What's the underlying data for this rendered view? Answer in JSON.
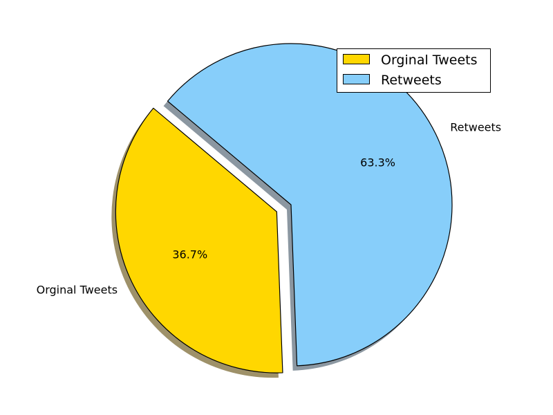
{
  "chart_data": {
    "type": "pie",
    "title": "",
    "slices": [
      {
        "label": "Orginal Tweets",
        "value": 36.7,
        "percent_label": "36.7%",
        "color": "#FFD700",
        "shadow_color": "#9E9169",
        "exploded": true
      },
      {
        "label": "Retweets",
        "value": 63.3,
        "percent_label": "63.3%",
        "color": "#87CEFA",
        "shadow_color": "#8B97A1",
        "exploded": false
      }
    ],
    "shadow": true,
    "legend": {
      "placement": "upper-right",
      "entries": [
        "Orginal Tweets",
        "Retweets"
      ]
    }
  }
}
